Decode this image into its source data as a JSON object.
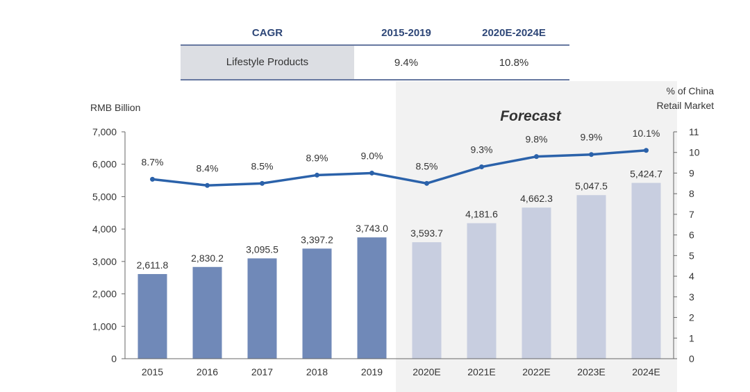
{
  "cagr_table": {
    "headers": [
      "CAGR",
      "2015-2019",
      "2020E-2024E"
    ],
    "row": [
      "Lifestyle Products",
      "9.4%",
      "10.8%"
    ]
  },
  "chart_data": {
    "type": "bar",
    "categories": [
      "2015",
      "2016",
      "2017",
      "2018",
      "2019",
      "2020E",
      "2021E",
      "2022E",
      "2023E",
      "2024E"
    ],
    "series": [
      {
        "values": [
          2611.8,
          2830.2,
          3095.5,
          3397.2,
          3743.0,
          3593.7,
          4181.6,
          4662.3,
          5047.5,
          5424.7
        ],
        "labels": [
          "2,611.8",
          "2,830.2",
          "3,095.5",
          "3,397.2",
          "3,743.0",
          "3,593.7",
          "4,181.6",
          "4,662.3",
          "5,047.5",
          "5,424.7"
        ],
        "axis": "left",
        "type": "bar"
      },
      {
        "values": [
          8.7,
          8.4,
          8.5,
          8.9,
          9.0,
          8.5,
          9.3,
          9.8,
          9.9,
          10.1
        ],
        "labels": [
          "8.7%",
          "8.4%",
          "8.5%",
          "8.9%",
          "9.0%",
          "8.5%",
          "9.3%",
          "9.8%",
          "9.9%",
          "10.1%"
        ],
        "axis": "right",
        "type": "line"
      }
    ],
    "ylabel": "RMB Billion",
    "y2label_lines": [
      "% of China",
      "Retail Market"
    ],
    "ylim": [
      0,
      7000
    ],
    "yticks": [
      "0",
      "1,000",
      "2,000",
      "3,000",
      "4,000",
      "5,000",
      "6,000",
      "7,000"
    ],
    "y2lim": [
      0,
      11
    ],
    "y2ticks": [
      "0",
      "1",
      "2",
      "3",
      "4",
      "5",
      "6",
      "7",
      "8",
      "9",
      "10",
      "11"
    ],
    "forecast_label": "Forecast",
    "forecast_start_index": 5,
    "colors": {
      "historical_bar": "#7089b8",
      "forecast_bar": "#c8cee0",
      "line": "#2b62aa",
      "forecast_bg": "#f2f2f2"
    },
    "grid": false
  }
}
